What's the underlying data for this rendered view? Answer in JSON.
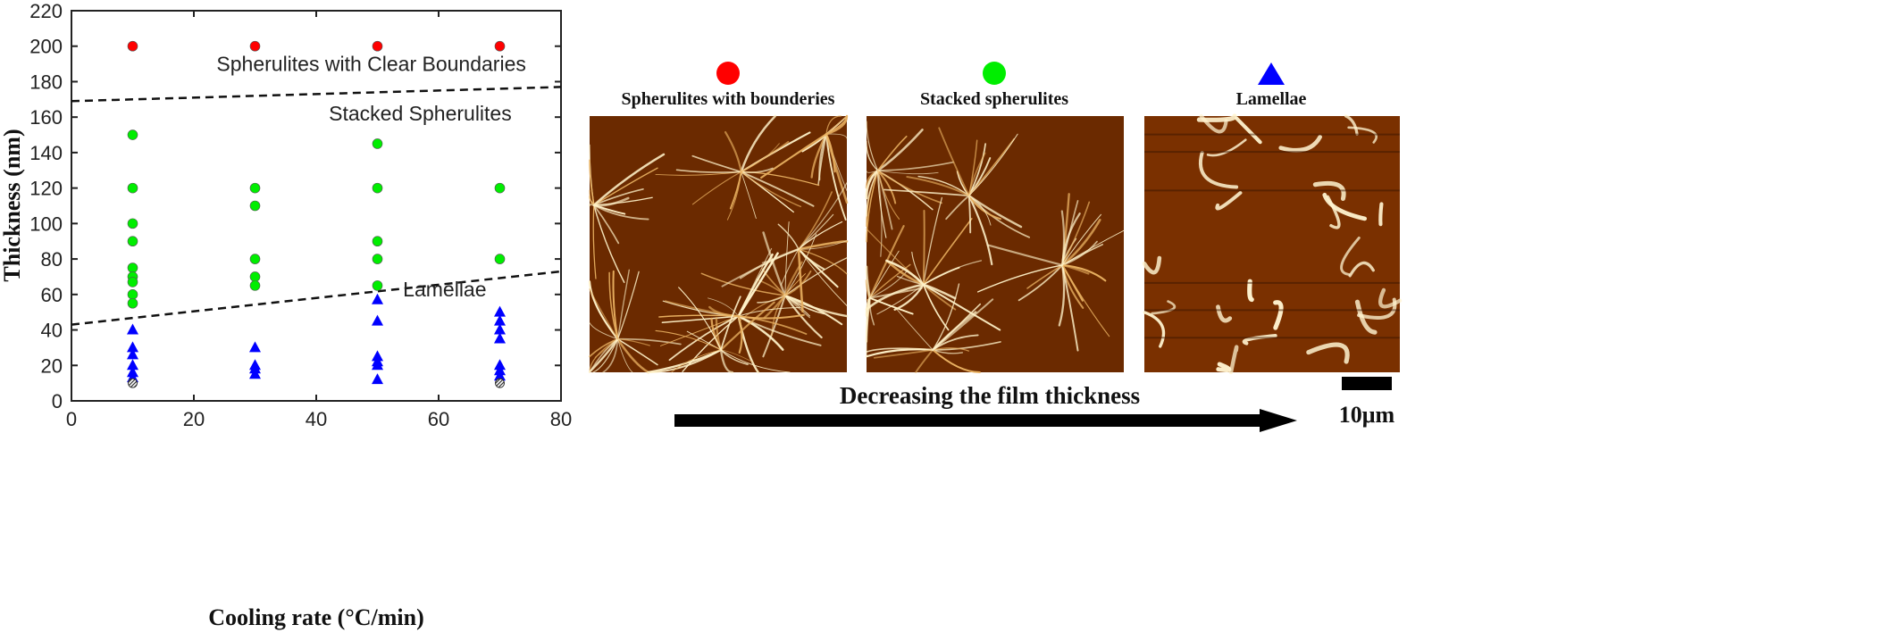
{
  "chart_data": {
    "type": "scatter",
    "xlabel": "Cooling rate (°C/min)",
    "ylabel": "Thickness (nm)",
    "xlim": [
      0,
      80
    ],
    "ylim": [
      0,
      220
    ],
    "x_ticks": [
      0,
      20,
      40,
      60,
      80
    ],
    "y_ticks": [
      0,
      20,
      40,
      60,
      80,
      100,
      120,
      140,
      160,
      180,
      200,
      220
    ],
    "grid": false,
    "series": [
      {
        "marker": "circle",
        "color": "#ff0000",
        "points": [
          [
            10,
            200
          ],
          [
            30,
            200
          ],
          [
            50,
            200
          ],
          [
            70,
            200
          ]
        ]
      },
      {
        "marker": "circle",
        "color": "#00ee00",
        "points": [
          [
            10,
            150
          ],
          [
            10,
            120
          ],
          [
            10,
            100
          ],
          [
            10,
            90
          ],
          [
            10,
            75
          ],
          [
            10,
            70
          ],
          [
            10,
            67
          ],
          [
            10,
            60
          ],
          [
            10,
            55
          ],
          [
            30,
            120
          ],
          [
            30,
            110
          ],
          [
            30,
            80
          ],
          [
            30,
            70
          ],
          [
            30,
            65
          ],
          [
            50,
            145
          ],
          [
            50,
            120
          ],
          [
            50,
            90
          ],
          [
            50,
            80
          ],
          [
            50,
            65
          ],
          [
            70,
            120
          ],
          [
            70,
            80
          ]
        ]
      },
      {
        "marker": "triangle",
        "color": "#0000ff",
        "points": [
          [
            10,
            40
          ],
          [
            10,
            30
          ],
          [
            10,
            26
          ],
          [
            10,
            20
          ],
          [
            10,
            16
          ],
          [
            10,
            13
          ],
          [
            30,
            30
          ],
          [
            30,
            20
          ],
          [
            30,
            18
          ],
          [
            30,
            15
          ],
          [
            50,
            57
          ],
          [
            50,
            45
          ],
          [
            50,
            25
          ],
          [
            50,
            22
          ],
          [
            50,
            20
          ],
          [
            50,
            12
          ],
          [
            70,
            50
          ],
          [
            70,
            45
          ],
          [
            70,
            40
          ],
          [
            70,
            35
          ],
          [
            70,
            20
          ],
          [
            70,
            17
          ],
          [
            70,
            14
          ]
        ]
      },
      {
        "marker": "hatched-circle",
        "color": "#555555",
        "points": [
          [
            10,
            10
          ],
          [
            70,
            10
          ]
        ]
      }
    ],
    "boundaries": [
      {
        "from": [
          0,
          169
        ],
        "to": [
          80,
          177
        ]
      },
      {
        "from": [
          0,
          43
        ],
        "to": [
          80,
          73
        ]
      }
    ],
    "region_labels": [
      {
        "text": "Spherulites with Clear Boundaries",
        "x": 49,
        "y": 186
      },
      {
        "text": "Stacked Spherulites",
        "x": 57,
        "y": 158
      },
      {
        "text": "Lamellae",
        "x": 61,
        "y": 59
      }
    ]
  },
  "panels": [
    {
      "label": "Spherulites with bounderies",
      "marker": "circle",
      "color": "#ff0000"
    },
    {
      "label": "Stacked spherulites",
      "marker": "circle",
      "color": "#00ee00"
    },
    {
      "label": "Lamellae",
      "marker": "triangle",
      "color": "#0000ff"
    }
  ],
  "arrow_label": "Decreasing the film thickness",
  "scale_bar_label": "10μm"
}
